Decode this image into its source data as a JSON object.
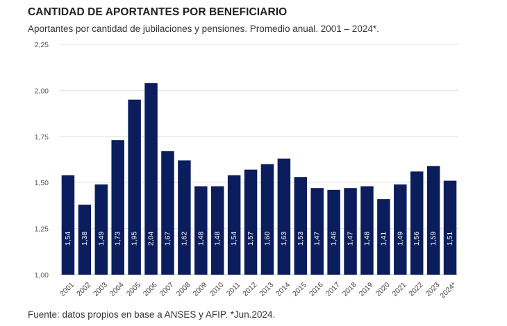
{
  "chart_data": {
    "type": "bar",
    "title": "CANTIDAD DE APORTANTES POR BENEFICIARIO",
    "subtitle": "Aportantes por cantidad de jubilaciones y pensiones. Promedio anual. 2001 – 2024*.",
    "source": "Fuente: datos propios en base a ANSES y AFIP. *Jun.2024.",
    "xlabel": "",
    "ylabel": "",
    "ylim": [
      1.0,
      2.25
    ],
    "yticks": [
      "1,00",
      "1,25",
      "1,50",
      "1,75",
      "2,00",
      "2,25"
    ],
    "grid": true,
    "bar_color": "#0b1d5c",
    "categories": [
      "2001",
      "2002",
      "2003",
      "2004",
      "2005",
      "2006",
      "2007",
      "2008",
      "2009",
      "2010",
      "2011",
      "2012",
      "2013",
      "2014",
      "2015",
      "2016",
      "2017",
      "2018",
      "2019",
      "2020",
      "2021",
      "2022",
      "2023",
      "2024*"
    ],
    "values": [
      1.54,
      1.38,
      1.49,
      1.73,
      1.95,
      2.04,
      1.67,
      1.62,
      1.48,
      1.48,
      1.54,
      1.57,
      1.6,
      1.63,
      1.53,
      1.47,
      1.46,
      1.47,
      1.48,
      1.41,
      1.49,
      1.56,
      1.59,
      1.51
    ],
    "value_labels": [
      "1,54",
      "1,38",
      "1,49",
      "1,73",
      "1,95",
      "2,04",
      "1,67",
      "1,62",
      "1,48",
      "1,48",
      "1,54",
      "1,57",
      "1,60",
      "1,63",
      "1,53",
      "1,47",
      "1,46",
      "1,47",
      "1,48",
      "1,41",
      "1,49",
      "1,56",
      "1,59",
      "1,51"
    ]
  }
}
